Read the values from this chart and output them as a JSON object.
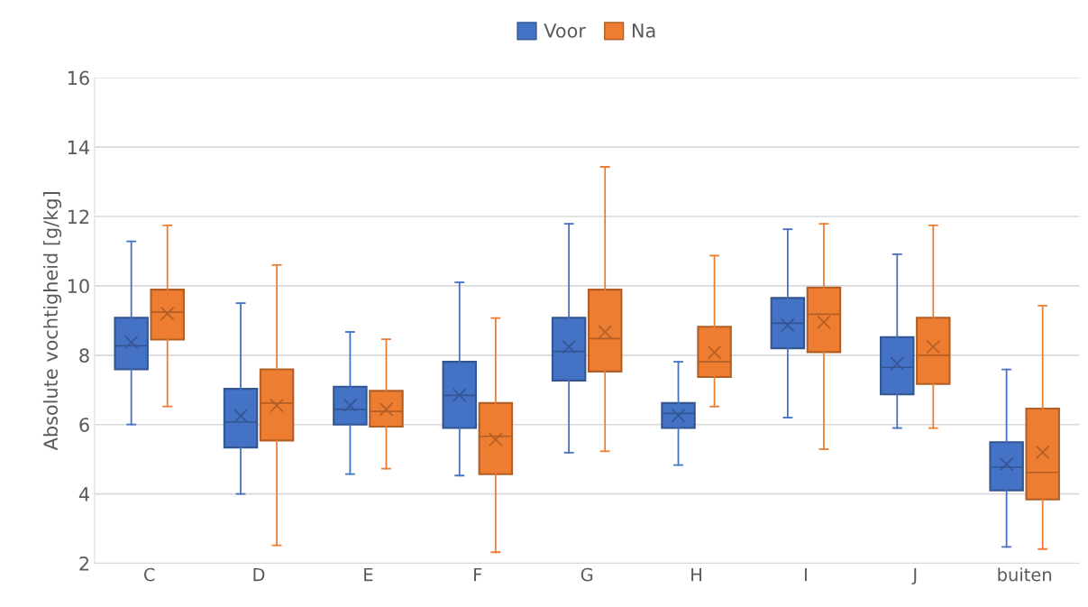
{
  "chart_data": {
    "type": "box",
    "ylabel": "Absolute vochtigheid [g/kg]",
    "categories": [
      "C",
      "D",
      "E",
      "F",
      "G",
      "H",
      "I",
      "J",
      "buiten"
    ],
    "ylim": [
      2,
      16
    ],
    "yticks": [
      2,
      4,
      6,
      8,
      10,
      12,
      14,
      16
    ],
    "grid": "y",
    "legend": "top",
    "series": [
      {
        "name": "Voor",
        "color": "#4472c4",
        "boxes": [
          {
            "low": 6.0,
            "q1": 7.59,
            "median": 8.27,
            "q3": 9.08,
            "high": 11.28,
            "mean": 8.37
          },
          {
            "low": 4.0,
            "q1": 5.34,
            "median": 6.07,
            "q3": 7.03,
            "high": 9.5,
            "mean": 6.25
          },
          {
            "low": 4.57,
            "q1": 6.0,
            "median": 6.44,
            "q3": 7.09,
            "high": 8.67,
            "mean": 6.55
          },
          {
            "low": 4.53,
            "q1": 5.9,
            "median": 6.84,
            "q3": 7.81,
            "high": 10.1,
            "mean": 6.85
          },
          {
            "low": 5.19,
            "q1": 7.27,
            "median": 8.11,
            "q3": 9.08,
            "high": 11.79,
            "mean": 8.24
          },
          {
            "low": 4.83,
            "q1": 5.9,
            "median": 6.32,
            "q3": 6.62,
            "high": 7.81,
            "mean": 6.26
          },
          {
            "low": 6.2,
            "q1": 8.2,
            "median": 8.92,
            "q3": 9.65,
            "high": 11.63,
            "mean": 8.87
          },
          {
            "low": 5.9,
            "q1": 6.87,
            "median": 7.65,
            "q3": 8.52,
            "high": 10.91,
            "mean": 7.76
          },
          {
            "low": 2.47,
            "q1": 4.1,
            "median": 4.77,
            "q3": 5.49,
            "high": 7.59,
            "mean": 4.86
          }
        ]
      },
      {
        "name": "Na",
        "color": "#ed7d31",
        "boxes": [
          {
            "low": 6.52,
            "q1": 8.45,
            "median": 9.24,
            "q3": 9.89,
            "high": 11.74,
            "mean": 9.2
          },
          {
            "low": 2.52,
            "q1": 5.54,
            "median": 6.62,
            "q3": 7.59,
            "high": 10.6,
            "mean": 6.55
          },
          {
            "low": 4.73,
            "q1": 5.94,
            "median": 6.38,
            "q3": 6.97,
            "high": 8.46,
            "mean": 6.44
          },
          {
            "low": 2.32,
            "q1": 4.57,
            "median": 5.66,
            "q3": 6.62,
            "high": 9.07,
            "mean": 5.57
          },
          {
            "low": 5.23,
            "q1": 7.53,
            "median": 8.48,
            "q3": 9.89,
            "high": 13.43,
            "mean": 8.67
          },
          {
            "low": 6.52,
            "q1": 7.37,
            "median": 7.81,
            "q3": 8.82,
            "high": 10.87,
            "mean": 8.08
          },
          {
            "low": 5.29,
            "q1": 8.09,
            "median": 9.18,
            "q3": 9.95,
            "high": 11.79,
            "mean": 8.95
          },
          {
            "low": 5.9,
            "q1": 7.17,
            "median": 8.0,
            "q3": 9.08,
            "high": 11.74,
            "mean": 8.24
          },
          {
            "low": 2.41,
            "q1": 3.84,
            "median": 4.62,
            "q3": 6.46,
            "high": 9.43,
            "mean": 5.2
          }
        ]
      }
    ]
  }
}
